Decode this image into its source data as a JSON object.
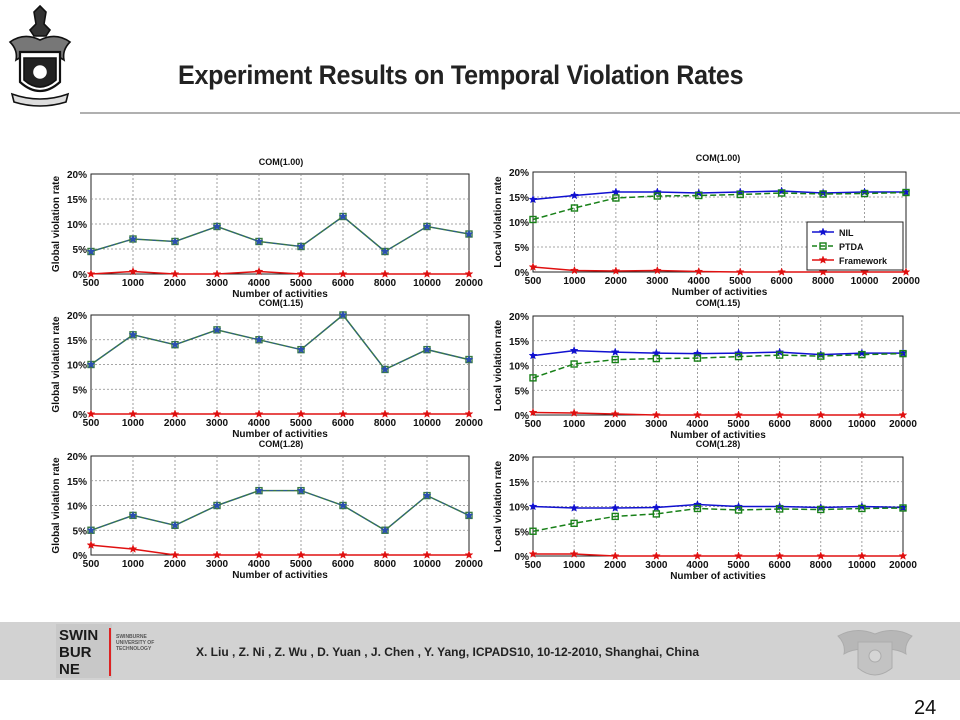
{
  "slide": {
    "title": "Experiment Results on Temporal Violation Rates",
    "page_number": "24",
    "citation": "X. Liu , Z. Ni , Z. Wu , D. Yuan , J. Chen , Y. Yang, ICPADS10, 10-12-2010,  Shanghai, China",
    "logo": {
      "line1": "SWIN",
      "line2": "BUR",
      "line3": "NE",
      "subtitle": "SWINBURNE UNIVERSITY OF TECHNOLOGY"
    },
    "colors": {
      "footer_bg": "#d2d2d2",
      "nil": "#1010d0",
      "ptda": "#188018",
      "framework": "#e01010",
      "global_series": "#3a7a40"
    }
  },
  "chart_data": [
    {
      "type": "line",
      "title": "COM(1.00)",
      "xlabel": "Number of activities",
      "ylabel": "Global violation rate",
      "categories": [
        "500",
        "1000",
        "2000",
        "3000",
        "4000",
        "5000",
        "6000",
        "8000",
        "10000",
        "20000"
      ],
      "yticks": [
        "0%",
        "5%",
        "10%",
        "15%",
        "20%"
      ],
      "ylim": [
        0,
        20
      ],
      "grid": true,
      "series": [
        {
          "values": [
            4.5,
            7,
            6.5,
            9.5,
            6.5,
            5.5,
            11.5,
            4.5,
            9.5,
            8
          ]
        },
        {
          "values": [
            0,
            0.5,
            0,
            0,
            0.5,
            0,
            0,
            0,
            0,
            0
          ]
        }
      ]
    },
    {
      "type": "line",
      "title": "COM(1.00)",
      "xlabel": "Number of activities",
      "ylabel": "Local violation rate",
      "categories": [
        "500",
        "1000",
        "2000",
        "3000",
        "4000",
        "5000",
        "6000",
        "8000",
        "10000",
        "20000"
      ],
      "yticks": [
        "0%",
        "5%",
        "10%",
        "15%",
        "20%"
      ],
      "ylim": [
        0,
        20
      ],
      "grid": true,
      "legend": "right",
      "series": [
        {
          "name": "NIL",
          "values": [
            14.5,
            15.3,
            16,
            16,
            15.8,
            16,
            16.2,
            15.8,
            16,
            16
          ]
        },
        {
          "name": "PTDA",
          "values": [
            10.5,
            12.8,
            14.8,
            15.2,
            15.3,
            15.5,
            15.8,
            15.6,
            15.7,
            15.9
          ]
        },
        {
          "name": "Framework",
          "values": [
            1,
            0.3,
            0.2,
            0.3,
            0.1,
            0,
            0,
            0,
            0,
            0
          ]
        }
      ]
    },
    {
      "type": "line",
      "title": "COM(1.15)",
      "xlabel": "Number of activities",
      "ylabel": "Global violation rate",
      "categories": [
        "500",
        "1000",
        "2000",
        "3000",
        "4000",
        "5000",
        "6000",
        "8000",
        "10000",
        "20000"
      ],
      "yticks": [
        "0%",
        "5%",
        "10%",
        "15%",
        "20%"
      ],
      "ylim": [
        0,
        20
      ],
      "grid": true,
      "series": [
        {
          "values": [
            10,
            16,
            14,
            17,
            15,
            13,
            20,
            9,
            13,
            11
          ]
        },
        {
          "values": [
            0,
            0,
            0,
            0,
            0,
            0,
            0,
            0,
            0,
            0
          ]
        }
      ]
    },
    {
      "type": "line",
      "title": "COM(1.15)",
      "xlabel": "Number of activities",
      "ylabel": "Local violation rate",
      "categories": [
        "500",
        "1000",
        "2000",
        "3000",
        "4000",
        "5000",
        "6000",
        "8000",
        "10000",
        "20000"
      ],
      "yticks": [
        "0%",
        "5%",
        "10%",
        "15%",
        "20%"
      ],
      "ylim": [
        0,
        20
      ],
      "grid": true,
      "series": [
        {
          "values": [
            12,
            13,
            12.7,
            12.5,
            12.4,
            12.5,
            12.7,
            12.2,
            12.5,
            12.5
          ]
        },
        {
          "values": [
            7.5,
            10.3,
            11.2,
            11.4,
            11.5,
            11.8,
            12.1,
            11.9,
            12.2,
            12.4
          ]
        },
        {
          "values": [
            0.5,
            0.4,
            0.2,
            0,
            0,
            0,
            0,
            0,
            0,
            0
          ]
        }
      ]
    },
    {
      "type": "line",
      "title": "COM(1.28)",
      "xlabel": "Number of activities",
      "ylabel": "Global violation rate",
      "categories": [
        "500",
        "1000",
        "2000",
        "3000",
        "4000",
        "5000",
        "6000",
        "8000",
        "10000",
        "20000"
      ],
      "yticks": [
        "0%",
        "5%",
        "10%",
        "15%",
        "20%"
      ],
      "ylim": [
        0,
        20
      ],
      "grid": true,
      "series": [
        {
          "values": [
            5,
            8,
            6,
            10,
            13,
            13,
            10,
            5,
            12,
            8
          ]
        },
        {
          "values": [
            2,
            1.2,
            0,
            0,
            0,
            0,
            0,
            0,
            0,
            0
          ]
        }
      ]
    },
    {
      "type": "line",
      "title": "COM(1.28)",
      "xlabel": "Number of activities",
      "ylabel": "Local violation rate",
      "categories": [
        "500",
        "1000",
        "2000",
        "3000",
        "4000",
        "5000",
        "6000",
        "8000",
        "10000",
        "20000"
      ],
      "yticks": [
        "0%",
        "5%",
        "10%",
        "15%",
        "20%"
      ],
      "ylim": [
        0,
        20
      ],
      "grid": true,
      "series": [
        {
          "values": [
            10,
            9.7,
            9.7,
            9.8,
            10.4,
            10,
            10,
            9.8,
            10,
            9.8
          ]
        },
        {
          "values": [
            5,
            6.6,
            8,
            8.5,
            9.6,
            9.3,
            9.5,
            9.4,
            9.6,
            9.7
          ]
        },
        {
          "values": [
            0.4,
            0.4,
            0,
            0,
            0,
            0,
            0,
            0,
            0,
            0
          ]
        }
      ]
    }
  ]
}
